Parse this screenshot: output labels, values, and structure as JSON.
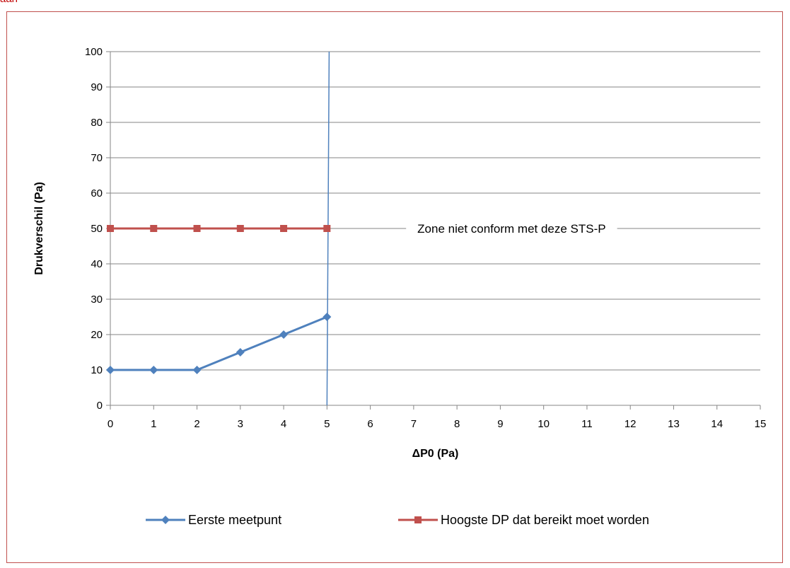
{
  "page": {
    "header_fragment": "aan"
  },
  "chart_data": {
    "type": "line",
    "title": "",
    "xlabel": "ΔP0 (Pa)",
    "ylabel": "Drukverschil (Pa)",
    "xlim": [
      0,
      15
    ],
    "ylim": [
      0,
      100
    ],
    "x_ticks": [
      "0",
      "1",
      "2",
      "3",
      "4",
      "5",
      "6",
      "7",
      "8",
      "9",
      "10",
      "11",
      "12",
      "13",
      "14",
      "15"
    ],
    "y_ticks": [
      "0",
      "10",
      "20",
      "30",
      "40",
      "50",
      "60",
      "70",
      "80",
      "90",
      "100"
    ],
    "grid": "horizontal",
    "legend_position": "bottom",
    "series": [
      {
        "name": "Eerste meetpunt",
        "color": "#4f81bd",
        "marker": "diamond",
        "x": [
          0,
          1,
          2,
          3,
          4,
          5
        ],
        "y": [
          10,
          10,
          10,
          15,
          20,
          25
        ]
      },
      {
        "name": "Hoogste DP dat bereikt moet worden",
        "color": "#c0504d",
        "marker": "square",
        "x": [
          0,
          1,
          2,
          3,
          4,
          5
        ],
        "y": [
          50,
          50,
          50,
          50,
          50,
          50
        ]
      }
    ],
    "limit_line": {
      "color": "#4f81bd",
      "x_bottom": 5,
      "x_top": 5.05,
      "y": [
        0,
        100
      ]
    },
    "annotation": {
      "text": "Zone niet conform met deze STS-P",
      "x": 9,
      "y": 50
    }
  }
}
